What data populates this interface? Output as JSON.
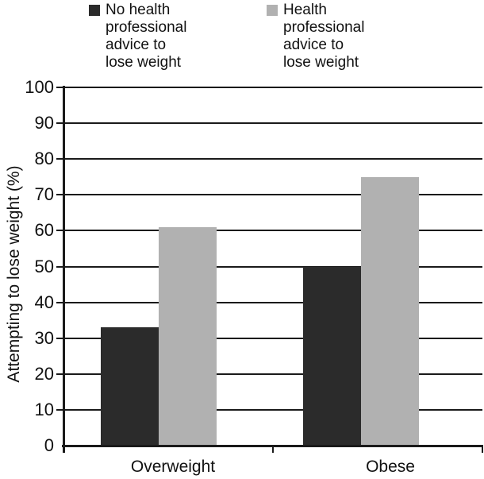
{
  "chart_data": {
    "type": "bar",
    "title": "",
    "categories": [
      "Overweight",
      "Obese"
    ],
    "series": [
      {
        "name": "No health professional advice to lose weight",
        "legend_label": "No health\nprofessional\nadvice to\nlose weight",
        "color": "#2b2b2b",
        "values": [
          33,
          50
        ]
      },
      {
        "name": "Health professional advice to lose weight",
        "legend_label": "Health\nprofessional\nadvice to\nlose weight",
        "color": "#b1b1b1",
        "values": [
          61,
          75
        ]
      }
    ],
    "xlabel": "",
    "ylabel": "Attempting to lose weight (%)",
    "ylim": [
      0,
      100
    ],
    "ytick_step": 10,
    "grid": "horizontal",
    "legend_position": "top",
    "line_color": "#1a1a1a"
  }
}
